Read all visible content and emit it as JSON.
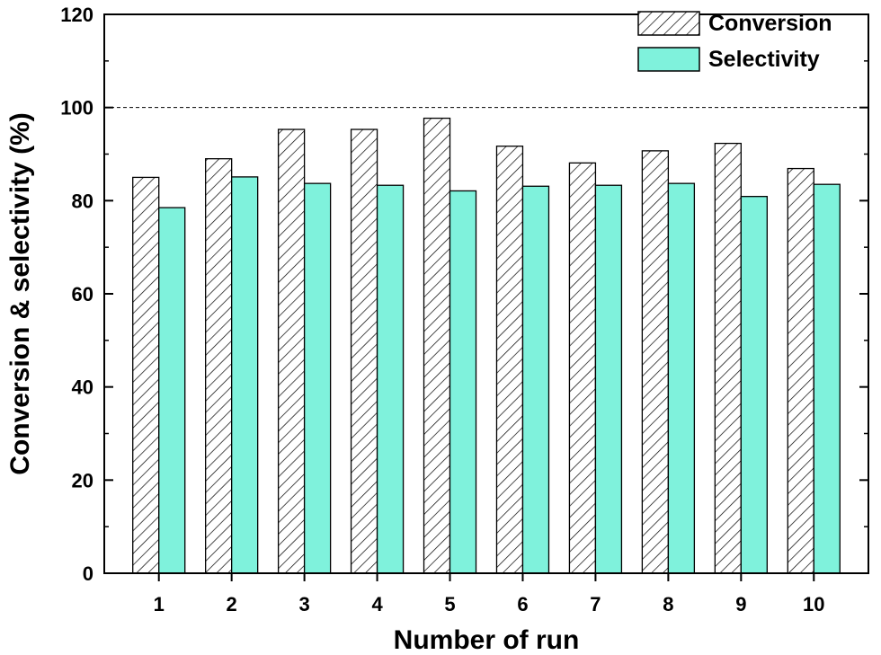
{
  "chart_data": {
    "type": "bar",
    "xlabel": "Number of run",
    "ylabel": "Conversion & selectivity (%)",
    "categories": [
      "1",
      "2",
      "3",
      "4",
      "5",
      "6",
      "7",
      "8",
      "9",
      "10"
    ],
    "series": [
      {
        "name": "Conversion",
        "values": [
          85.0,
          89.0,
          95.3,
          95.3,
          97.7,
          91.7,
          88.1,
          90.7,
          92.3,
          86.9
        ],
        "fill": "hatch",
        "color": "#000000"
      },
      {
        "name": "Selectivity",
        "values": [
          78.5,
          85.1,
          83.7,
          83.3,
          82.1,
          83.1,
          83.3,
          83.7,
          80.9,
          83.5
        ],
        "fill": "solid",
        "color": "#7ff2dc"
      }
    ],
    "ylim": [
      0,
      120
    ],
    "yticks": [
      "0",
      "20",
      "40",
      "60",
      "80",
      "100",
      "120"
    ],
    "reference_line": {
      "y": 100,
      "style": "dashed"
    },
    "grid": false,
    "legend": "top-right"
  }
}
